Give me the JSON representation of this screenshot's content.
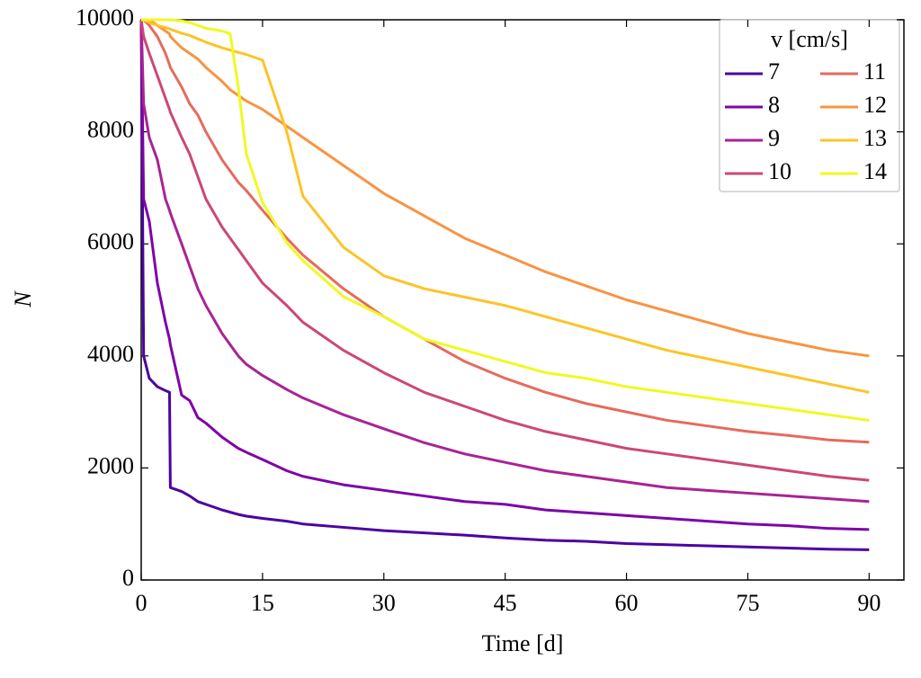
{
  "chart_data": {
    "type": "line",
    "xlabel": "Time [d]",
    "ylabel": "N",
    "legend_title": "v [cm/s]",
    "legend": "upper right",
    "xlim": [
      0,
      94.3
    ],
    "ylim": [
      0,
      10000
    ],
    "xticks": [
      0,
      15,
      30,
      45,
      60,
      75,
      90
    ],
    "yticks": [
      0,
      2000,
      4000,
      6000,
      8000,
      10000
    ],
    "x": [
      0,
      0.3,
      1,
      2,
      3,
      3.5,
      3.6,
      5,
      6,
      7,
      8,
      10,
      11,
      12,
      13,
      15,
      18,
      20,
      25,
      30,
      35,
      40,
      45,
      50,
      55,
      60,
      65,
      70,
      75,
      80,
      85,
      90
    ],
    "series": [
      {
        "name": "7",
        "color": "#4c02a1",
        "values": [
          10000,
          4000,
          3600,
          3450,
          3380,
          3350,
          1650,
          1580,
          1500,
          1400,
          1350,
          1250,
          1210,
          1170,
          1140,
          1100,
          1050,
          1000,
          940,
          880,
          840,
          800,
          750,
          710,
          690,
          650,
          630,
          610,
          590,
          570,
          550,
          540
        ]
      },
      {
        "name": "8",
        "color": "#7e03a8",
        "values": [
          10000,
          6800,
          6400,
          5300,
          4600,
          4300,
          4200,
          3300,
          3200,
          2900,
          2800,
          2550,
          2450,
          2350,
          2280,
          2150,
          1950,
          1850,
          1700,
          1600,
          1500,
          1400,
          1350,
          1250,
          1200,
          1150,
          1100,
          1050,
          1000,
          970,
          920,
          900
        ]
      },
      {
        "name": "9",
        "color": "#a92395",
        "values": [
          10000,
          8500,
          7900,
          7500,
          6800,
          6600,
          6550,
          6000,
          5600,
          5200,
          4900,
          4400,
          4200,
          4000,
          3850,
          3650,
          3400,
          3250,
          2950,
          2700,
          2450,
          2250,
          2100,
          1950,
          1850,
          1750,
          1650,
          1600,
          1550,
          1500,
          1450,
          1400
        ]
      },
      {
        "name": "10",
        "color": "#cc4778",
        "values": [
          10000,
          9700,
          9400,
          9000,
          8600,
          8400,
          8350,
          7900,
          7600,
          7200,
          6800,
          6300,
          6100,
          5900,
          5700,
          5300,
          4900,
          4600,
          4100,
          3700,
          3350,
          3100,
          2850,
          2650,
          2500,
          2350,
          2250,
          2150,
          2050,
          1950,
          1850,
          1780
        ]
      },
      {
        "name": "11",
        "color": "#e56b5d",
        "values": [
          10000,
          10000,
          9900,
          9700,
          9400,
          9200,
          9150,
          8800,
          8500,
          8300,
          8000,
          7500,
          7300,
          7100,
          6950,
          6600,
          6100,
          5800,
          5200,
          4700,
          4300,
          3900,
          3600,
          3350,
          3150,
          3000,
          2850,
          2750,
          2650,
          2580,
          2500,
          2460
        ]
      },
      {
        "name": "12",
        "color": "#f89441",
        "values": [
          10000,
          10000,
          10000,
          9900,
          9800,
          9750,
          9700,
          9500,
          9400,
          9300,
          9150,
          8900,
          8750,
          8650,
          8550,
          8400,
          8100,
          7900,
          7400,
          6900,
          6500,
          6100,
          5800,
          5500,
          5250,
          5000,
          4800,
          4600,
          4400,
          4250,
          4100,
          4000
        ]
      },
      {
        "name": "13",
        "color": "#fdc328",
        "values": [
          10000,
          10000,
          9950,
          9900,
          9860,
          9840,
          9830,
          9760,
          9720,
          9660,
          9600,
          9500,
          9460,
          9420,
          9380,
          9280,
          8000,
          6850,
          5940,
          5430,
          5200,
          5050,
          4900,
          4700,
          4500,
          4300,
          4100,
          3950,
          3800,
          3650,
          3500,
          3350
        ]
      },
      {
        "name": "14",
        "color": "#f0f921",
        "values": [
          10000,
          10000,
          10000,
          10000,
          10000,
          10000,
          10000,
          9980,
          9950,
          9900,
          9850,
          9800,
          9750,
          8800,
          7600,
          6740,
          6020,
          5700,
          5060,
          4700,
          4300,
          4100,
          3900,
          3700,
          3600,
          3450,
          3350,
          3250,
          3150,
          3050,
          2950,
          2850
        ]
      }
    ]
  }
}
